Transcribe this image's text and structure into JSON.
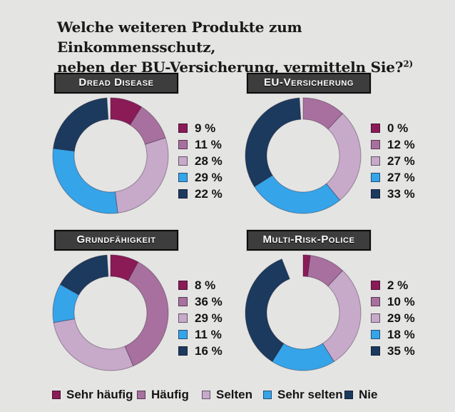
{
  "background_color": "#e4e4e2",
  "title": {
    "line1": "Welche weiteren Produkte zum Einkommensschutz,",
    "line2": "neben der BU-Versicherung, vermitteln Sie?",
    "footnote": "2)"
  },
  "legend": [
    {
      "label": "Sehr häufig",
      "color": "#8b1b57"
    },
    {
      "label": "Häufig",
      "color": "#a8709e"
    },
    {
      "label": "Selten",
      "color": "#c7a9c9"
    },
    {
      "label": "Sehr selten",
      "color": "#36a4e8"
    },
    {
      "label": "Nie",
      "color": "#1b3a5e"
    }
  ],
  "chart_data": [
    {
      "type": "pie",
      "subtype": "donut",
      "title": "Dread Disease",
      "categories": [
        "Sehr häufig",
        "Häufig",
        "Selten",
        "Sehr selten",
        "Nie"
      ],
      "values": [
        9,
        11,
        28,
        29,
        22
      ],
      "labels": [
        "9 %",
        "11 %",
        "28 %",
        "29 %",
        "22 %"
      ],
      "unit": "%"
    },
    {
      "type": "pie",
      "subtype": "donut",
      "title": "EU-Versicherung",
      "categories": [
        "Sehr häufig",
        "Häufig",
        "Selten",
        "Sehr selten",
        "Nie"
      ],
      "values": [
        0,
        12,
        27,
        27,
        33
      ],
      "labels": [
        "0 %",
        "12 %",
        "27 %",
        "27 %",
        "33 %"
      ],
      "unit": "%"
    },
    {
      "type": "pie",
      "subtype": "donut",
      "title": "Grundfähigkeit",
      "categories": [
        "Sehr häufig",
        "Häufig",
        "Selten",
        "Sehr selten",
        "Nie"
      ],
      "values": [
        8,
        36,
        29,
        11,
        16
      ],
      "labels": [
        "8 %",
        "36 %",
        "29 %",
        "11 %",
        "16 %"
      ],
      "unit": "%"
    },
    {
      "type": "pie",
      "subtype": "donut",
      "title": "Multi-Risk-Police",
      "categories": [
        "Sehr häufig",
        "Häufig",
        "Selten",
        "Sehr selten",
        "Nie"
      ],
      "values": [
        2,
        10,
        29,
        18,
        35
      ],
      "labels": [
        "2 %",
        "10 %",
        "29 %",
        "18 %",
        "35 %"
      ],
      "unit": "%"
    }
  ]
}
